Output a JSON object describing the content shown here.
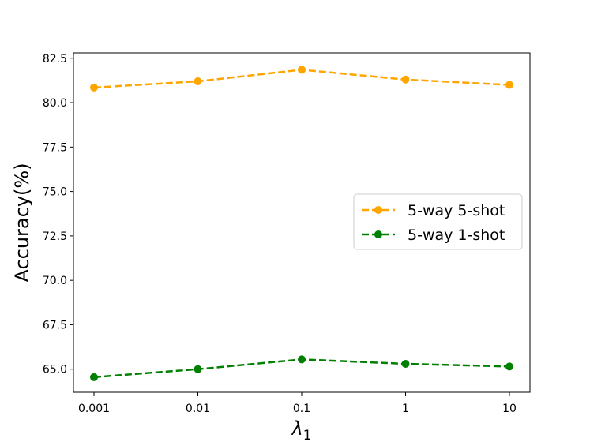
{
  "chart_data": {
    "type": "line",
    "categories": [
      "0.001",
      "0.01",
      "0.1",
      "1",
      "10"
    ],
    "series": [
      {
        "name": "5-way 5-shot",
        "color": "#ffa500",
        "line_style": "dashed",
        "marker": "circle",
        "values": [
          80.85,
          81.2,
          81.85,
          81.3,
          81.0
        ]
      },
      {
        "name": "5-way 1-shot",
        "color": "#008000",
        "line_style": "dashed",
        "marker": "circle",
        "values": [
          64.55,
          65.0,
          65.55,
          65.3,
          65.15
        ]
      }
    ],
    "y_ticks": [
      "65.0",
      "67.5",
      "70.0",
      "72.5",
      "75.0",
      "77.5",
      "80.0",
      "82.5"
    ],
    "ylim": [
      63.7,
      82.8
    ],
    "ylabel": "Accuracy(%)",
    "xlabel": "λ",
    "xlabel_subscript": "1",
    "grid": false,
    "legend_position": "center-right"
  }
}
